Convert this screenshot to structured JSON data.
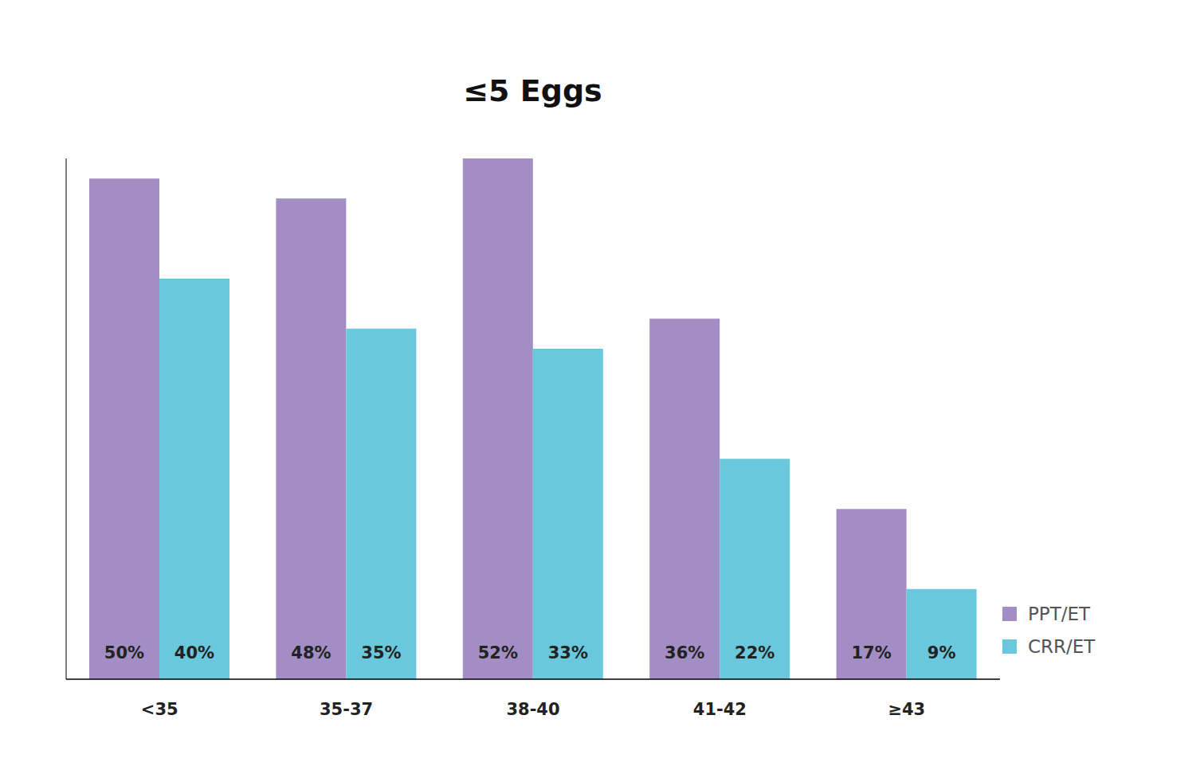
{
  "chart_data": {
    "type": "bar",
    "title": "≤5 Eggs",
    "categories": [
      "<35",
      "35-37",
      "38-40",
      "41-42",
      "≥43"
    ],
    "series": [
      {
        "name": "PPT/ET",
        "color": "#a28dc4",
        "values": [
          50,
          48,
          52,
          36,
          17
        ],
        "value_labels": [
          "50%",
          "48%",
          "52%",
          "36%",
          "17%"
        ]
      },
      {
        "name": "CRR/ET",
        "color": "#6ac8dc",
        "values": [
          40,
          35,
          33,
          22,
          9
        ],
        "value_labels": [
          "40%",
          "35%",
          "33%",
          "22%",
          "9%"
        ]
      }
    ],
    "ylim": [
      0,
      52
    ],
    "grid": false,
    "legend": "right",
    "data_labels": true,
    "tick_labels": "x"
  }
}
